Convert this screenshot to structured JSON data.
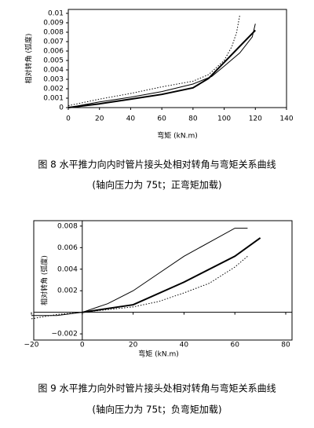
{
  "chart_data": [
    {
      "type": "line",
      "x_label": "弯矩 (kN.m)",
      "y_label": "相对转角 (弧度)",
      "xlim": [
        0,
        140
      ],
      "ylim": [
        0,
        0.01
      ],
      "xticks": [
        0,
        20,
        40,
        60,
        80,
        100,
        120,
        140
      ],
      "yticks": [
        0,
        0.001,
        0.002,
        0.003,
        0.004,
        0.005,
        0.006,
        0.007,
        0.008,
        0.009,
        0.01
      ],
      "series": [
        {
          "color": "#000000",
          "width": 2,
          "style": "solid",
          "x": [
            0,
            20,
            40,
            60,
            80,
            90,
            100,
            110,
            120
          ],
          "values": [
            0,
            0.0004,
            0.0009,
            0.0014,
            0.0021,
            0.0031,
            0.0048,
            0.0065,
            0.0082
          ]
        },
        {
          "color": "#000000",
          "width": 1,
          "style": "solid",
          "x": [
            0,
            20,
            40,
            60,
            80,
            92,
            100,
            110,
            118,
            120
          ],
          "values": [
            0,
            0.0006,
            0.0011,
            0.0017,
            0.0025,
            0.0033,
            0.0044,
            0.0058,
            0.0075,
            0.0089
          ]
        },
        {
          "color": "#000000",
          "width": 1,
          "style": "dotted",
          "x": [
            0,
            20,
            40,
            60,
            80,
            90,
            100,
            105,
            108,
            110
          ],
          "values": [
            0.0002,
            0.0009,
            0.0015,
            0.0022,
            0.0028,
            0.0035,
            0.005,
            0.0065,
            0.008,
            0.0098
          ]
        }
      ]
    },
    {
      "type": "line",
      "x_label": "弯矩 (kN.m)",
      "y_label": "相对转角 (弧度)",
      "xlim": [
        -20,
        80
      ],
      "ylim": [
        -0.0025,
        0.0085
      ],
      "xticks": [
        {
          "value": -20,
          "label": "−20"
        },
        0,
        20,
        40,
        60,
        80
      ],
      "yticks": [
        {
          "value": -0.002,
          "label": "−0.002"
        },
        0.002,
        0.004,
        0.006,
        0.008
      ],
      "series": [
        {
          "color": "#000000",
          "width": 2,
          "style": "solid",
          "x": [
            0,
            20,
            40,
            60,
            70
          ],
          "values": [
            0,
            0.0007,
            0.0028,
            0.0052,
            0.0069
          ]
        },
        {
          "color": "#000000",
          "width": 1,
          "style": "solid",
          "x": [
            -20,
            -10,
            0,
            10,
            20,
            30,
            40,
            50,
            60,
            65
          ],
          "values": [
            -0.0003,
            -0.0003,
            0,
            0.0008,
            0.002,
            0.0036,
            0.0052,
            0.0065,
            0.0078,
            0.0078
          ]
        },
        {
          "color": "#000000",
          "width": 1,
          "style": "dotted",
          "x": [
            -20,
            -10,
            0,
            20,
            30,
            40,
            50,
            60,
            65
          ],
          "values": [
            -0.0006,
            -0.0002,
            0,
            0.0005,
            0.001,
            0.0018,
            0.0027,
            0.0042,
            0.0052
          ]
        }
      ]
    }
  ],
  "captions": [
    {
      "title": "图 8  水平推力向内时管片接头处相对转角与弯矩关系曲线",
      "note": "(轴向压力为 75t；正弯矩加载)"
    },
    {
      "title": "图 9  水平推力向外时管片接头处相对转角与弯矩关系曲线",
      "note": "(轴向压力为 75t；负弯矩加载)"
    }
  ]
}
